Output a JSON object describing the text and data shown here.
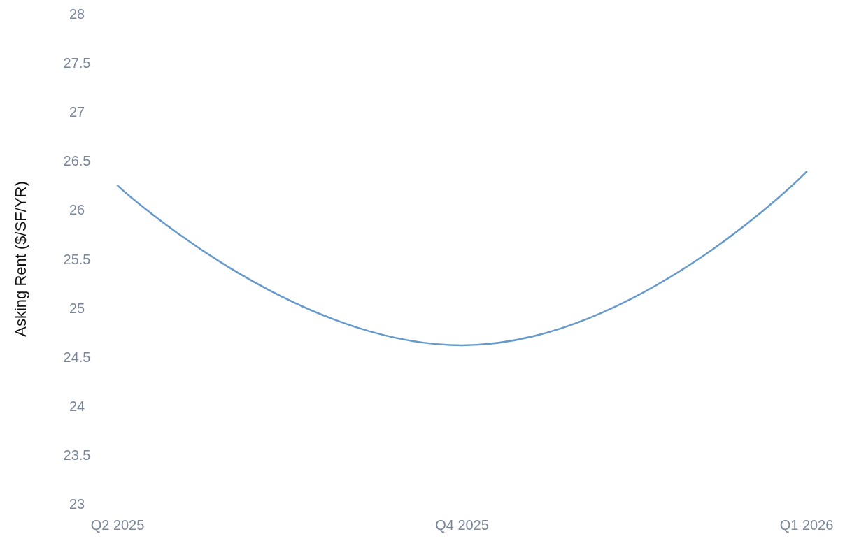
{
  "chart_data": {
    "type": "line",
    "ylabel": "Asking Rent ($/SF/YR)",
    "categories": [
      "Q2 2025",
      "Q4 2025",
      "Q1 2026"
    ],
    "series": [
      {
        "color": "#6699cc",
        "values": [
          26.25,
          24.62,
          26.39
        ]
      }
    ],
    "ylim": [
      23,
      28
    ],
    "yticks": [
      23,
      23.5,
      24,
      24.5,
      25,
      25.5,
      26,
      26.5,
      27,
      27.5,
      28
    ],
    "marker": "none",
    "line_style": "solid"
  }
}
